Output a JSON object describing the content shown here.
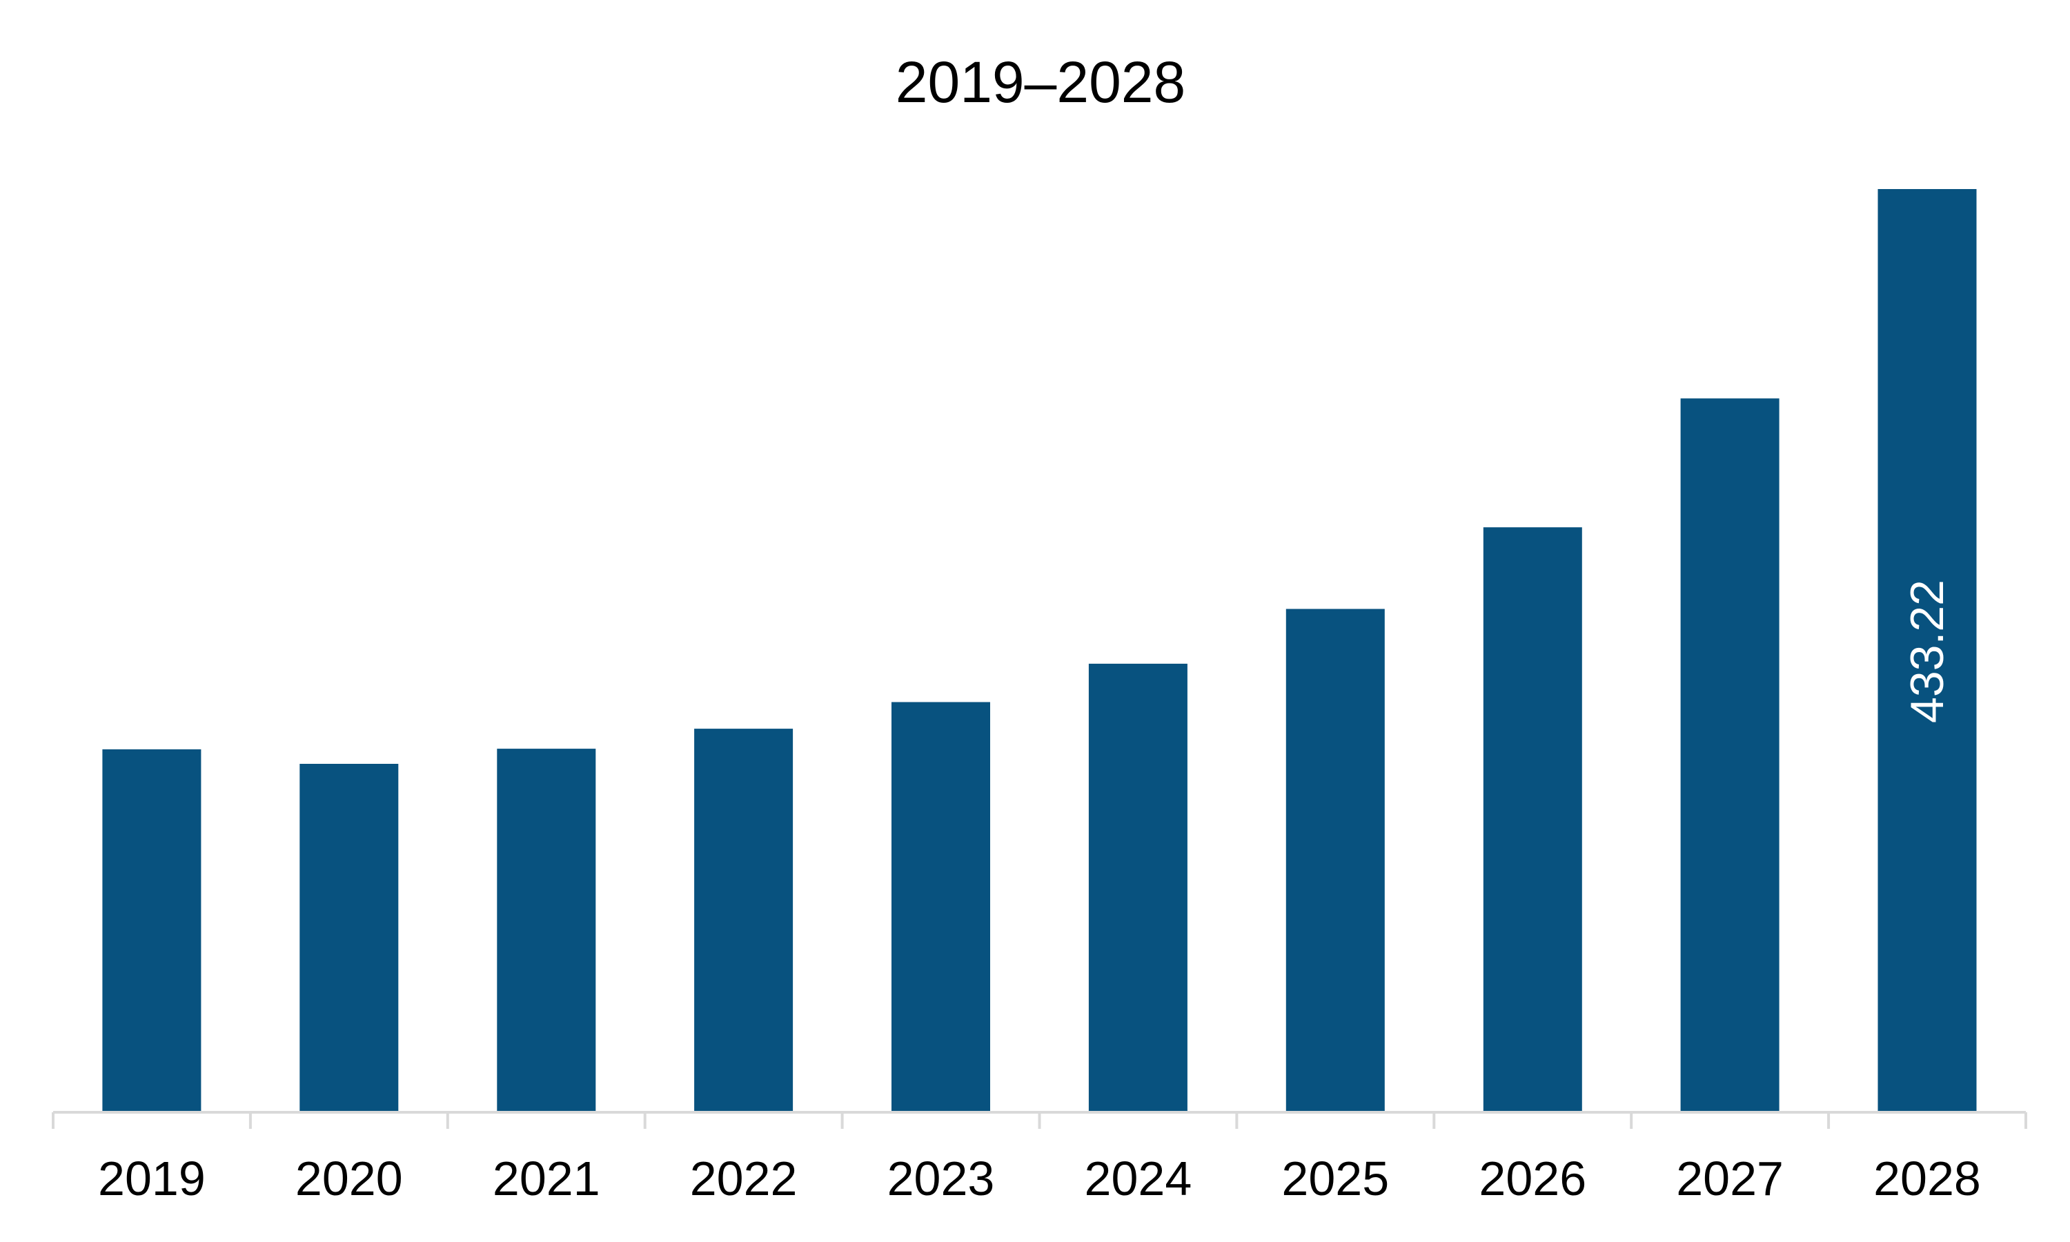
{
  "chart_data": {
    "type": "bar",
    "title": "2019–2028",
    "categories": [
      "2019",
      "2020",
      "2021",
      "2022",
      "2023",
      "2024",
      "2025",
      "2026",
      "2027",
      "2028"
    ],
    "values": [
      170.3,
      163.5,
      170.6,
      180.0,
      192.5,
      210.5,
      236.2,
      274.5,
      335.0,
      433.22
    ],
    "data_labels": [
      "",
      "",
      "",
      "",
      "",
      "",
      "",
      "",
      "",
      "433.22"
    ],
    "xlabel": "",
    "ylabel": "",
    "ylim": [
      0,
      433.22
    ],
    "bar_color": "#08527f",
    "axis_color": "#d9d9d9",
    "grid": false,
    "legend": "none"
  }
}
